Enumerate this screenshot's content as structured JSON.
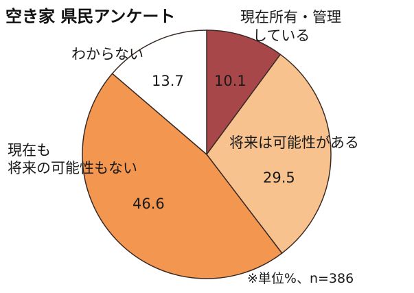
{
  "chart_data": {
    "type": "pie",
    "title": "空き家 県民アンケート",
    "note": "※単位%、n=386",
    "start_angle_deg": 0,
    "direction": "clockwise",
    "slices": [
      {
        "label_lines": [
          "現在所有・管理",
          "している"
        ],
        "value": 10.1,
        "value_text": "10.1",
        "color": "#a8474a"
      },
      {
        "label_lines": [
          "将来は可能性がある"
        ],
        "value": 29.5,
        "value_text": "29.5",
        "color": "#f8c28e"
      },
      {
        "label_lines": [
          "現在も",
          "将来の可能性もない"
        ],
        "value": 46.6,
        "value_text": "46.6",
        "color": "#f29650"
      },
      {
        "label_lines": [
          "わからない"
        ],
        "value": 13.7,
        "value_text": "13.7",
        "color": "#ffffff"
      }
    ]
  }
}
